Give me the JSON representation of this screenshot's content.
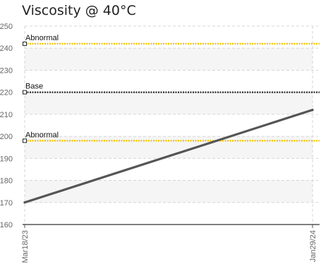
{
  "chart_data": {
    "type": "line",
    "title": "Viscosity @ 40°C",
    "xlabel": "",
    "ylabel": "",
    "x_ticks": [
      "Mar18/23",
      "Jan29/24"
    ],
    "ylim": [
      160,
      250
    ],
    "y_ticks": [
      160,
      170,
      180,
      190,
      200,
      210,
      220,
      230,
      240,
      250
    ],
    "grid": true,
    "series": [
      {
        "x": [
          "Mar18/23",
          "Jan29/24"
        ],
        "values": [
          170,
          212
        ],
        "color": "#555555"
      }
    ],
    "reference_lines": [
      {
        "label": "Abnormal",
        "value": 242,
        "color": "#f2c200"
      },
      {
        "label": "Base",
        "value": 220,
        "color": "#333333"
      },
      {
        "label": "Abnormal",
        "value": 198,
        "color": "#f2c200"
      }
    ]
  }
}
